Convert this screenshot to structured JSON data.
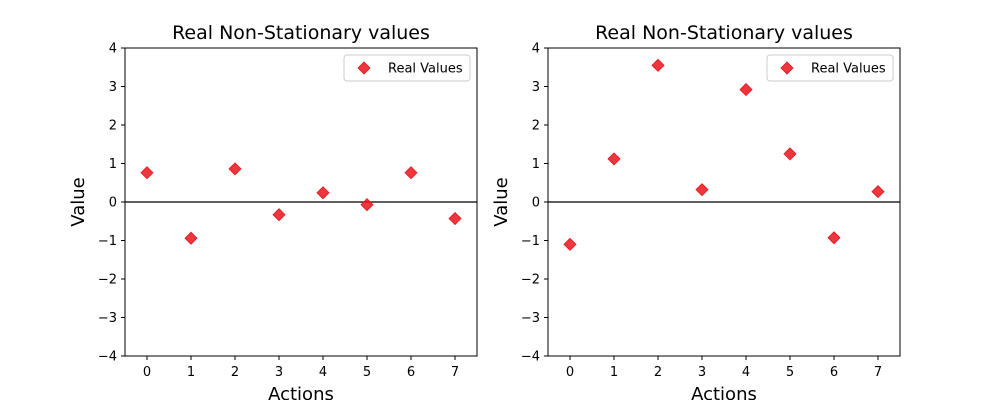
{
  "colors": {
    "marker": "#e8141b",
    "zero_line": "#000000"
  },
  "chart_data": [
    {
      "type": "scatter",
      "title": "Real Non-Stationary values",
      "xlabel": "Actions",
      "ylabel": "Value",
      "xlim": [
        -0.5,
        7.5
      ],
      "ylim": [
        -4,
        4
      ],
      "x_ticks": [
        "0",
        "1",
        "2",
        "3",
        "4",
        "5",
        "6",
        "7"
      ],
      "y_ticks": [
        "−4",
        "−3",
        "−2",
        "−1",
        "0",
        "1",
        "2",
        "3",
        "4"
      ],
      "legend": {
        "label": "Real Values",
        "position": "top-right"
      },
      "series": [
        {
          "name": "Real Values",
          "x": [
            0,
            1,
            2,
            3,
            4,
            5,
            6,
            7
          ],
          "y": [
            0.76,
            -0.94,
            0.86,
            -0.33,
            0.24,
            -0.07,
            0.76,
            -0.43
          ]
        }
      ]
    },
    {
      "type": "scatter",
      "title": "Real Non-Stationary values",
      "xlabel": "Actions",
      "ylabel": "Value",
      "xlim": [
        -0.5,
        7.5
      ],
      "ylim": [
        -4,
        4
      ],
      "x_ticks": [
        "0",
        "1",
        "2",
        "3",
        "4",
        "5",
        "6",
        "7"
      ],
      "y_ticks": [
        "−4",
        "−3",
        "−2",
        "−1",
        "0",
        "1",
        "2",
        "3",
        "4"
      ],
      "legend": {
        "label": "Real Values",
        "position": "top-right"
      },
      "series": [
        {
          "name": "Real Values",
          "x": [
            0,
            1,
            2,
            3,
            4,
            5,
            6,
            7
          ],
          "y": [
            -1.1,
            1.12,
            3.55,
            0.32,
            2.92,
            1.25,
            -0.93,
            0.27
          ]
        }
      ]
    }
  ]
}
